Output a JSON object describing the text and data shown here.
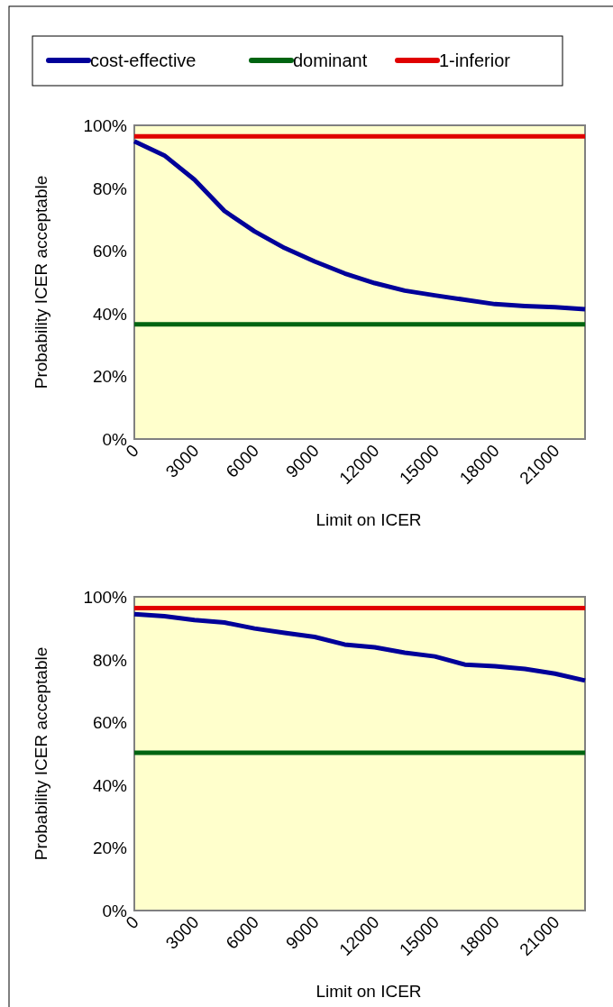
{
  "chart_data": [
    {
      "type": "line",
      "xlabel": "Limit on ICER",
      "ylabel": "Probability ICER acceptable",
      "x": [
        0,
        1500,
        3000,
        4500,
        6000,
        7500,
        9000,
        10500,
        12000,
        13500,
        15000,
        16500,
        18000,
        19500,
        21000,
        22500
      ],
      "xlim": [
        0,
        22500
      ],
      "xticks": [
        0,
        3000,
        6000,
        9000,
        12000,
        15000,
        18000,
        21000
      ],
      "ylim": [
        0,
        100
      ],
      "yticks": [
        {
          "value": 0,
          "label": "0%"
        },
        {
          "value": 20,
          "label": "20%"
        },
        {
          "value": 40,
          "label": "40%"
        },
        {
          "value": 60,
          "label": "60%"
        },
        {
          "value": 80,
          "label": "80%"
        },
        {
          "value": 100,
          "label": "100%"
        }
      ],
      "legend": "top",
      "grid": false,
      "series": [
        {
          "name": "cost-effective",
          "color": "#000099",
          "values": [
            94.9,
            90.4,
            82.7,
            72.7,
            66.2,
            60.9,
            56.6,
            52.8,
            49.7,
            47.3,
            45.8,
            44.4,
            43.0,
            42.4,
            42.0,
            41.4
          ]
        },
        {
          "name": "dominant",
          "color": "#006411",
          "values": [
            36.6,
            36.6,
            36.6,
            36.6,
            36.6,
            36.6,
            36.6,
            36.6,
            36.6,
            36.6,
            36.6,
            36.6,
            36.6,
            36.6,
            36.6,
            36.6
          ]
        },
        {
          "name": "1-inferior",
          "color": "#e00000",
          "values": [
            96.5,
            96.5,
            96.5,
            96.5,
            96.5,
            96.5,
            96.5,
            96.5,
            96.5,
            96.5,
            96.5,
            96.5,
            96.5,
            96.5,
            96.5,
            96.5
          ]
        }
      ]
    },
    {
      "type": "line",
      "xlabel": "Limit on ICER",
      "ylabel": "Probability ICER acceptable",
      "x": [
        0,
        1500,
        3000,
        4500,
        6000,
        7500,
        9000,
        10500,
        12000,
        13500,
        15000,
        16500,
        18000,
        19500,
        21000,
        22500
      ],
      "xlim": [
        0,
        22500
      ],
      "xticks": [
        0,
        3000,
        6000,
        9000,
        12000,
        15000,
        18000,
        21000
      ],
      "ylim": [
        0,
        100
      ],
      "yticks": [
        {
          "value": 0,
          "label": "0%"
        },
        {
          "value": 20,
          "label": "20%"
        },
        {
          "value": 40,
          "label": "40%"
        },
        {
          "value": 60,
          "label": "60%"
        },
        {
          "value": 80,
          "label": "80%"
        },
        {
          "value": 100,
          "label": "100%"
        }
      ],
      "grid": false,
      "series": [
        {
          "color": "#000099",
          "values": [
            94.5,
            93.8,
            92.6,
            91.8,
            89.9,
            88.5,
            87.2,
            84.8,
            83.9,
            82.2,
            81.0,
            78.4,
            77.9,
            77.0,
            75.5,
            73.3
          ]
        },
        {
          "color": "#006411",
          "values": [
            50.3,
            50.3,
            50.3,
            50.3,
            50.3,
            50.3,
            50.3,
            50.3,
            50.3,
            50.3,
            50.3,
            50.3,
            50.3,
            50.3,
            50.3,
            50.3
          ]
        },
        {
          "color": "#e00000",
          "values": [
            96.4,
            96.4,
            96.4,
            96.4,
            96.4,
            96.4,
            96.4,
            96.4,
            96.4,
            96.4,
            96.4,
            96.4,
            96.4,
            96.4,
            96.4,
            96.4
          ]
        }
      ]
    }
  ]
}
